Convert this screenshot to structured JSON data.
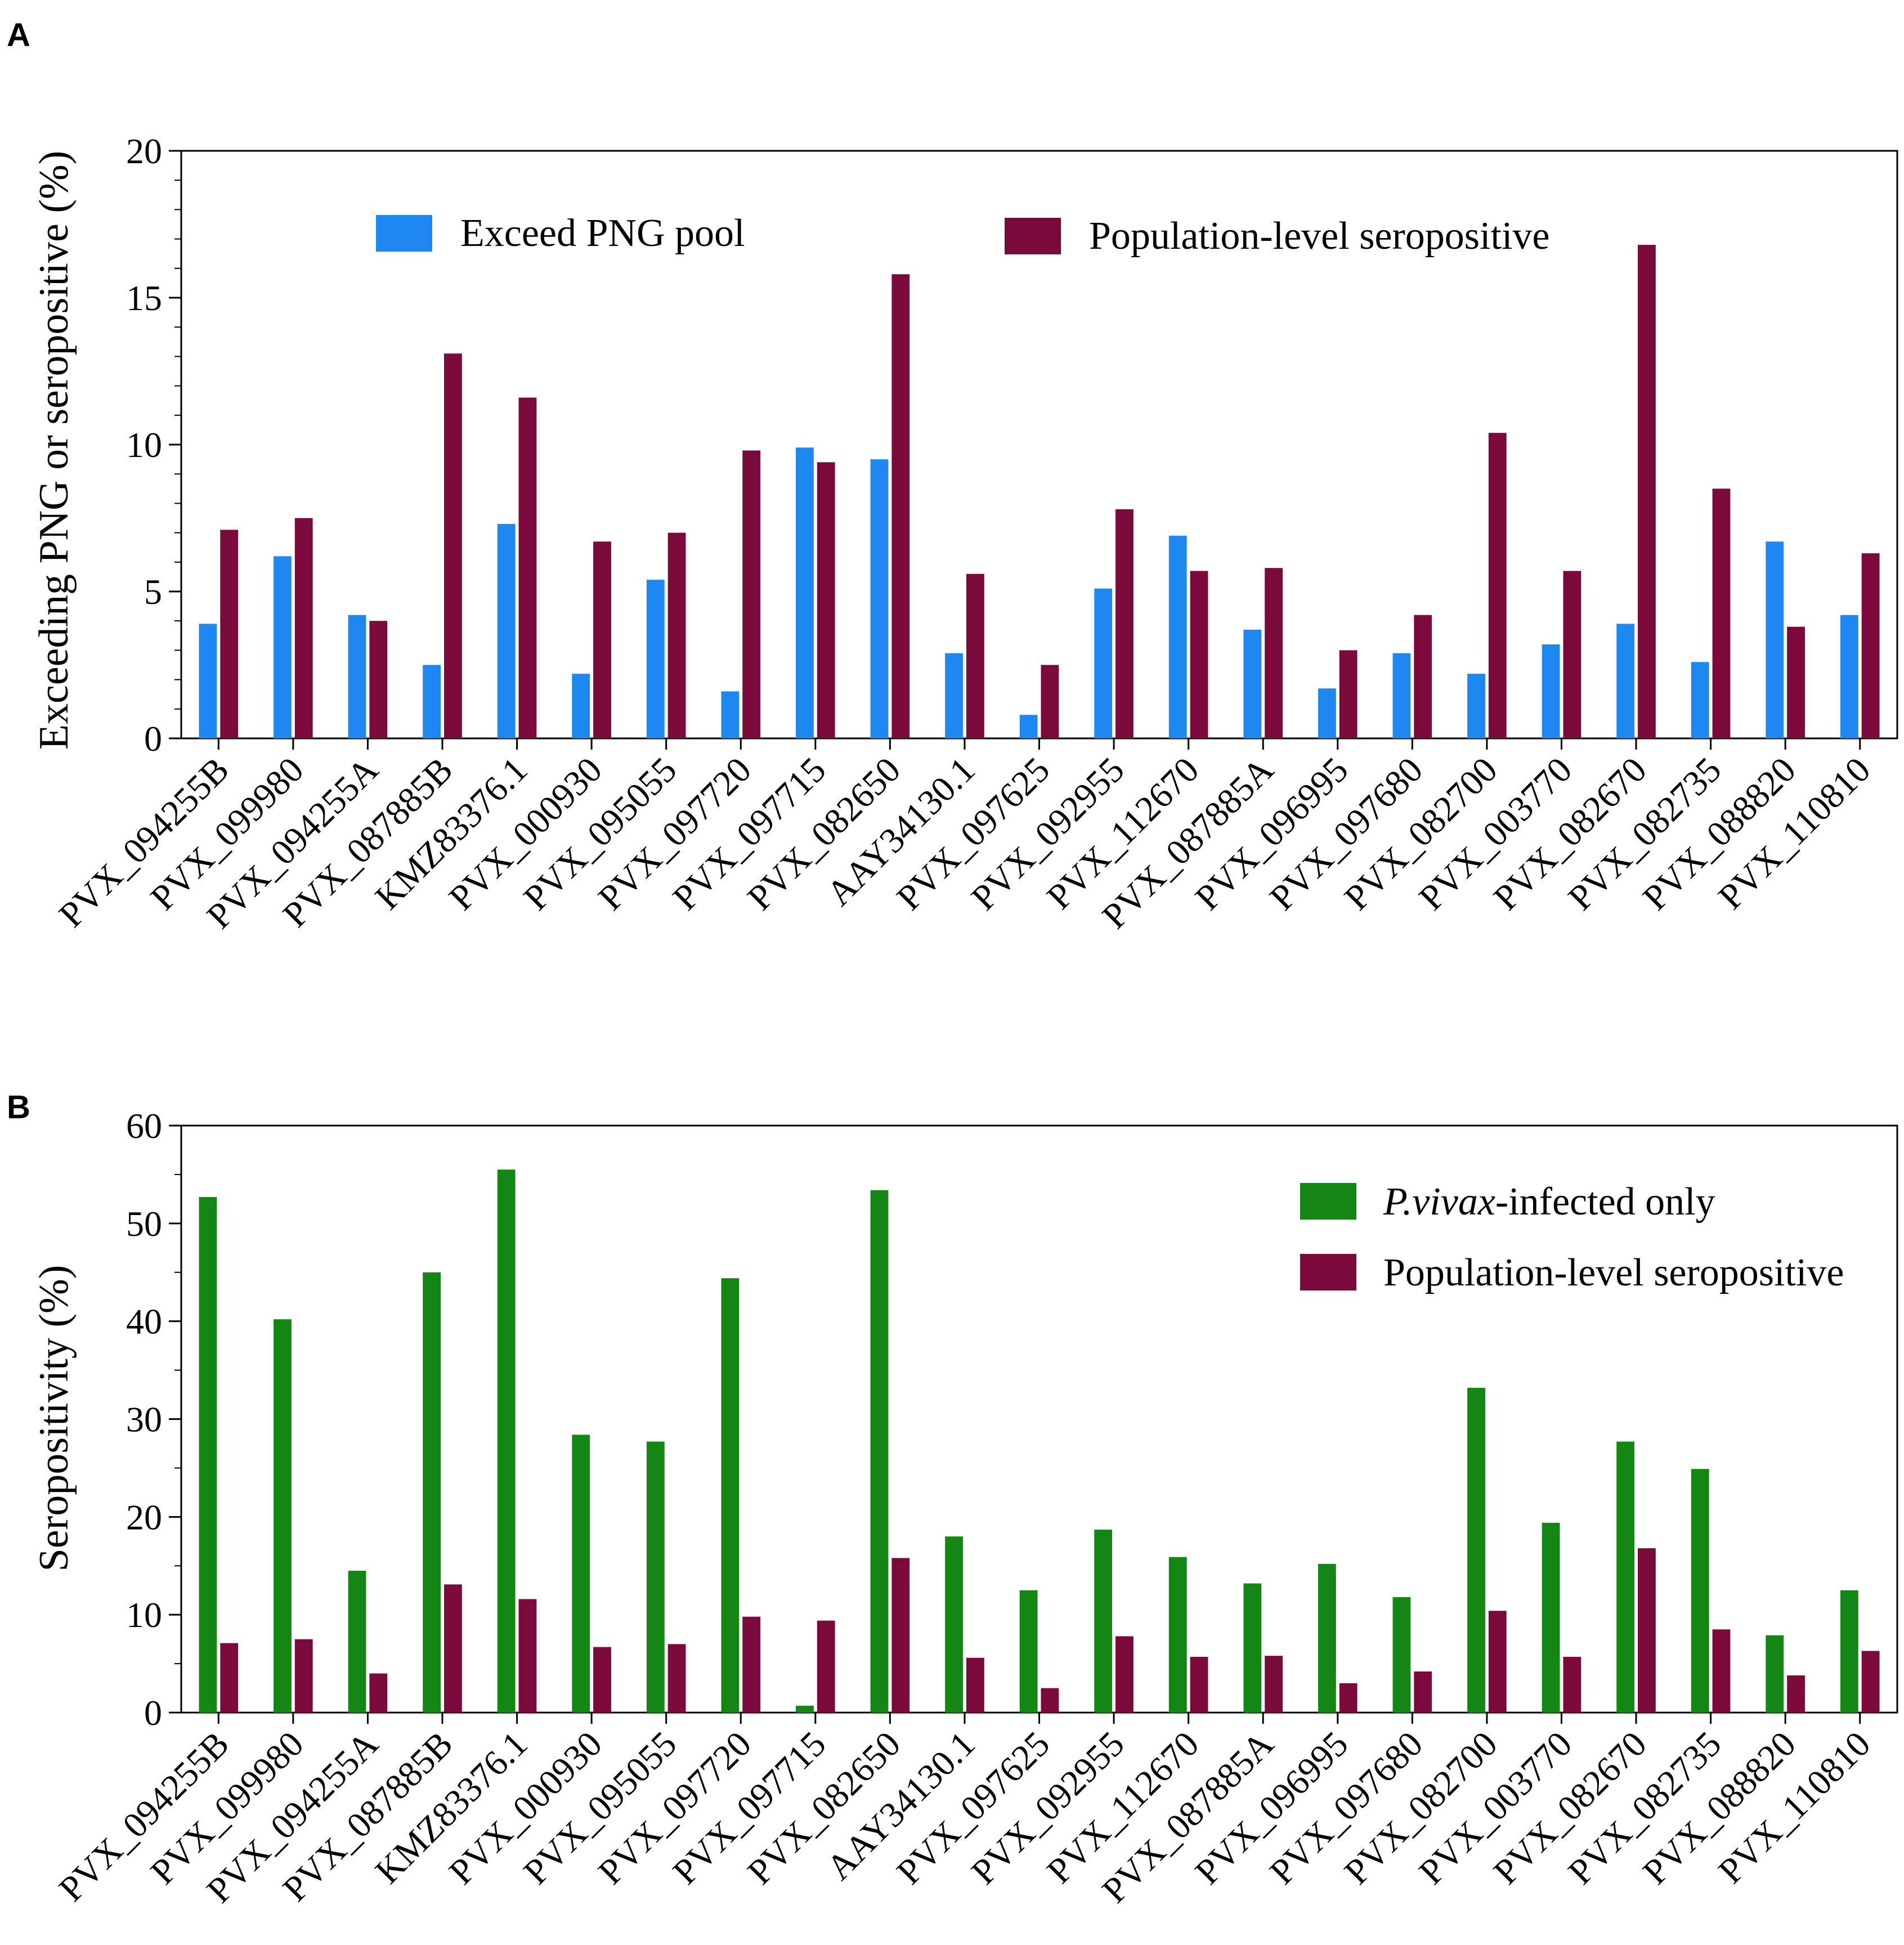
{
  "panels": {
    "a": {
      "label": "A"
    },
    "b": {
      "label": "B"
    }
  },
  "colors": {
    "blue": "#1e88f0",
    "maroon": "#7b0a3c",
    "green": "#138613",
    "axis": "#000000"
  },
  "chart_data": [
    {
      "type": "bar",
      "panel": "A",
      "title": "",
      "xlabel": "",
      "ylabel": "Exceeding PNG or seropositive (%)",
      "ylim": [
        0,
        20
      ],
      "yticks": [
        0,
        5,
        10,
        15,
        20
      ],
      "grid": false,
      "legend_position": "top",
      "categories": [
        "PVX_094255B",
        "PVX_099980",
        "PVX_094255A",
        "PVX_087885B",
        "KMZ83376.1",
        "PVX_000930",
        "PVX_095055",
        "PVX_097720",
        "PVX_097715",
        "PVX_082650",
        "AAY34130.1",
        "PVX_097625",
        "PVX_092955",
        "PVX_112670",
        "PVX_087885A",
        "PVX_096995",
        "PVX_097680",
        "PVX_082700",
        "PVX_003770",
        "PVX_082670",
        "PVX_082735",
        "PVX_088820",
        "PVX_110810"
      ],
      "series": [
        {
          "name": "Exceed PNG pool",
          "color": "#1e88f0",
          "values": [
            3.9,
            6.2,
            4.2,
            2.5,
            7.3,
            2.2,
            5.4,
            1.6,
            9.9,
            9.5,
            2.9,
            0.8,
            5.1,
            6.9,
            3.7,
            1.7,
            2.9,
            2.2,
            3.2,
            3.9,
            2.6,
            6.7,
            4.2
          ]
        },
        {
          "name": "Population-level seropositive",
          "color": "#7b0a3c",
          "values": [
            7.1,
            7.5,
            4.0,
            13.1,
            11.6,
            6.7,
            7.0,
            9.8,
            9.4,
            15.8,
            5.6,
            2.5,
            7.8,
            5.7,
            5.8,
            3.0,
            4.2,
            10.4,
            5.7,
            16.8,
            8.5,
            3.8,
            6.3
          ]
        }
      ]
    },
    {
      "type": "bar",
      "panel": "B",
      "title": "",
      "xlabel": "",
      "ylabel": "Seropositivity (%)",
      "ylim": [
        0,
        60
      ],
      "yticks": [
        0,
        10,
        20,
        30,
        40,
        50,
        60
      ],
      "grid": false,
      "legend_position": "top-right",
      "categories": [
        "PVX_094255B",
        "PVX_099980",
        "PVX_094255A",
        "PVX_087885B",
        "KMZ83376.1",
        "PVX_000930",
        "PVX_095055",
        "PVX_097720",
        "PVX_097715",
        "PVX_082650",
        "AAY34130.1",
        "PVX_097625",
        "PVX_092955",
        "PVX_112670",
        "PVX_087885A",
        "PVX_096995",
        "PVX_097680",
        "PVX_082700",
        "PVX_003770",
        "PVX_082670",
        "PVX_082735",
        "PVX_088820",
        "PVX_110810"
      ],
      "series": [
        {
          "name_italic": "P.vivax",
          "name_rest": "-infected only",
          "color": "#138613",
          "values": [
            52.7,
            40.2,
            14.5,
            45.0,
            55.5,
            28.4,
            27.7,
            44.4,
            0.7,
            53.4,
            18.0,
            12.5,
            18.7,
            15.9,
            13.2,
            15.2,
            11.8,
            33.2,
            19.4,
            27.7,
            24.9,
            7.9,
            12.5
          ]
        },
        {
          "name": "Population-level seropositive",
          "color": "#7b0a3c",
          "values": [
            7.1,
            7.5,
            4.0,
            13.1,
            11.6,
            6.7,
            7.0,
            9.8,
            9.4,
            15.8,
            5.6,
            2.5,
            7.8,
            5.7,
            5.8,
            3.0,
            4.2,
            10.4,
            5.7,
            16.8,
            8.5,
            3.8,
            6.3
          ]
        }
      ]
    }
  ]
}
